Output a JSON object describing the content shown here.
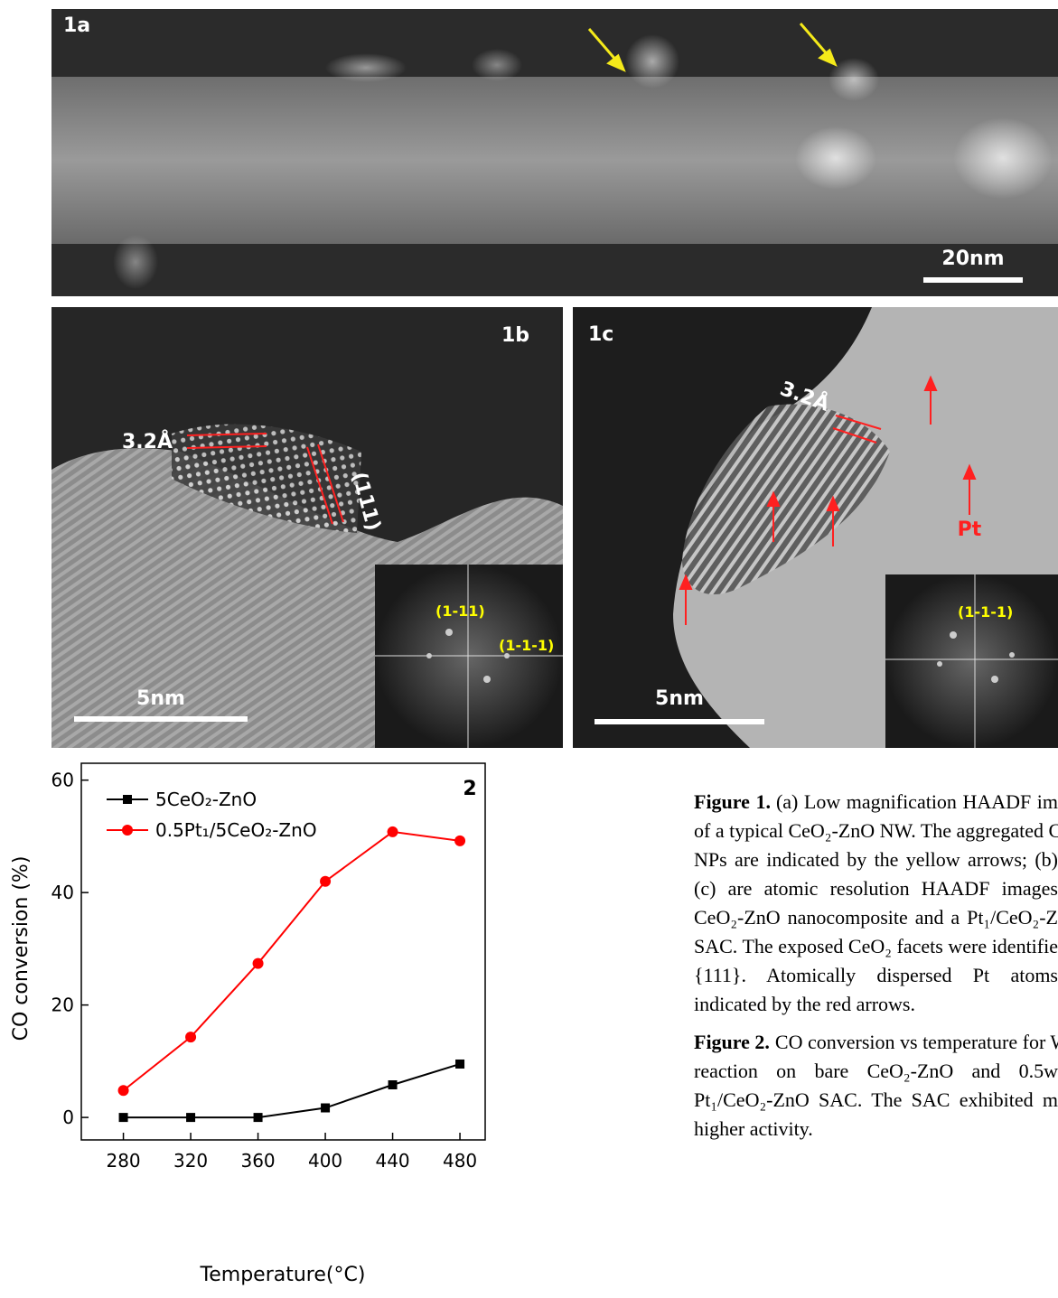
{
  "panels": {
    "a": {
      "label": "1a",
      "scale_bar": "20nm"
    },
    "b": {
      "label": "1b",
      "spacing": "3.2Å",
      "plane": "(111)",
      "scale_bar": "5nm",
      "fft_spots": [
        "(1-11)",
        "(1-1-1)"
      ]
    },
    "c": {
      "label": "1c",
      "spacing": "3.2Å",
      "marker": "Pt",
      "scale_bar": "5nm",
      "fft_spot": "(1-1-1)"
    }
  },
  "chart_data": {
    "type": "line",
    "annotation": "2",
    "xlabel": "Temperature(°C)",
    "ylabel": "CO conversion (%)",
    "x": [
      280,
      320,
      360,
      400,
      440,
      480
    ],
    "series": [
      {
        "name": "5CeO₂-ZnO",
        "color": "#000000",
        "marker": "square",
        "values": [
          0,
          0,
          0,
          1.7,
          5.8,
          9.5
        ]
      },
      {
        "name": "0.5Pt₁/5CeO₂-ZnO",
        "color": "#ff0000",
        "marker": "circle",
        "values": [
          4.8,
          14.3,
          27.4,
          42,
          50.8,
          49.2
        ]
      }
    ],
    "xlim": [
      255,
      495
    ],
    "ylim": [
      -4,
      63
    ],
    "xticks": [
      280,
      320,
      360,
      400,
      440,
      480
    ],
    "yticks": [
      0,
      20,
      40,
      60
    ],
    "legend": "upper left"
  },
  "captions": [
    {
      "label": "Figure 1.",
      "lines": [
        "(a) Low magnification HAADF im",
        "of a typical CeO₂-ZnO NW. The aggregated C",
        "NPs are indicated by the yellow arrows; (b)",
        "(c) are atomic resolution HAADF images",
        "CeO₂-ZnO nanocomposite and a Pt₁/CeO₂-Z",
        "SAC. The exposed CeO₂ facets were identifie",
        "{111}. Atomically dispersed Pt atoms",
        "indicated by the red arrows."
      ]
    },
    {
      "label": "Figure 2.",
      "lines": [
        "CO conversion vs temperature for W",
        "reaction on bare CeO₂-ZnO and 0.5w",
        "Pt₁/CeO₂-ZnO SAC. The SAC exhibited m",
        "higher activity."
      ]
    }
  ]
}
